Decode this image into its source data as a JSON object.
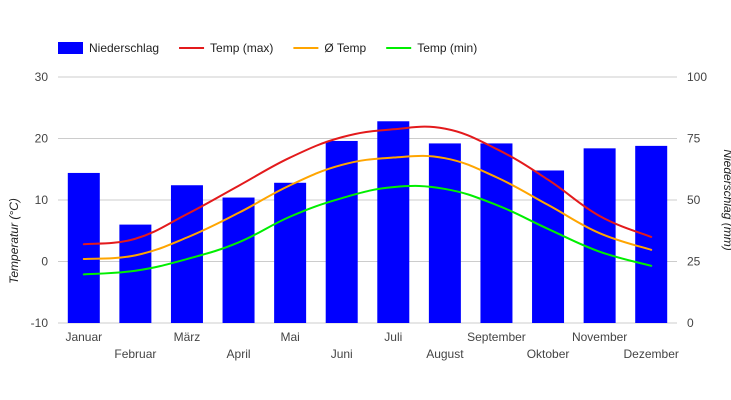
{
  "chart_data": {
    "type": "bar",
    "categories": [
      "Januar",
      "Februar",
      "März",
      "April",
      "Mai",
      "Juni",
      "Juli",
      "August",
      "September",
      "Oktober",
      "November",
      "Dezember"
    ],
    "bars": {
      "name": "Niederschlag",
      "axis": "right",
      "color": "#0000ff",
      "values": [
        61,
        40,
        56,
        51,
        57,
        74,
        82,
        73,
        73,
        62,
        71,
        72
      ]
    },
    "series": [
      {
        "name": "Temp (max)",
        "type": "line",
        "axis": "left",
        "color": "#e31a1c",
        "values": [
          2.8,
          3.7,
          7.7,
          12.3,
          16.9,
          20.2,
          21.5,
          21.6,
          18.3,
          13.3,
          7.4,
          4.0
        ]
      },
      {
        "name": "Ø Temp",
        "type": "line",
        "axis": "left",
        "color": "#ffa500",
        "values": [
          0.4,
          1.0,
          3.9,
          7.9,
          12.4,
          15.7,
          16.9,
          16.8,
          13.7,
          9.2,
          4.6,
          1.9
        ]
      },
      {
        "name": "Temp (min)",
        "type": "line",
        "axis": "left",
        "color": "#00ee00",
        "values": [
          -2.1,
          -1.5,
          0.4,
          3.1,
          7.3,
          10.3,
          12.1,
          11.8,
          9.2,
          5.3,
          1.6,
          -0.7
        ]
      }
    ],
    "ylabel_left": "Temperatur (°C)",
    "ylabel_right": "Niederschlag (mm)",
    "ylim_left": [
      -10,
      30
    ],
    "ylim_right": [
      0,
      100
    ],
    "yticks_left": [
      -10,
      0,
      10,
      20,
      30
    ],
    "yticks_right": [
      0,
      25,
      50,
      75,
      100
    ],
    "grid": true,
    "legend_position": "top-left"
  }
}
